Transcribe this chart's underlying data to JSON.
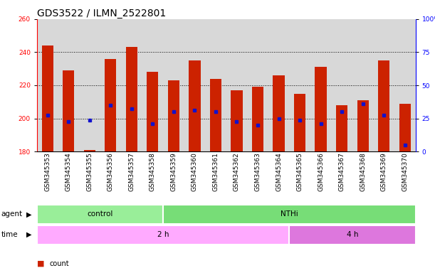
{
  "title": "GDS3522 / ILMN_2522801",
  "samples": [
    "GSM345353",
    "GSM345354",
    "GSM345355",
    "GSM345356",
    "GSM345357",
    "GSM345358",
    "GSM345359",
    "GSM345360",
    "GSM345361",
    "GSM345362",
    "GSM345363",
    "GSM345364",
    "GSM345365",
    "GSM345366",
    "GSM345367",
    "GSM345368",
    "GSM345369",
    "GSM345370"
  ],
  "bar_bottom": 180,
  "bar_tops": [
    244,
    229,
    181,
    236,
    243,
    228,
    223,
    235,
    224,
    217,
    219,
    226,
    215,
    231,
    208,
    211,
    235,
    209
  ],
  "blue_positions": [
    202,
    198,
    199,
    208,
    206,
    197,
    204,
    205,
    204,
    198,
    196,
    200,
    199,
    197,
    204,
    209,
    202,
    184
  ],
  "ylim_left": [
    180,
    260
  ],
  "ylim_right": [
    0,
    100
  ],
  "yticks_left": [
    180,
    200,
    220,
    240,
    260
  ],
  "yticks_right": [
    0,
    25,
    50,
    75,
    100
  ],
  "bar_color": "#cc2200",
  "blue_color": "#1111cc",
  "bg_color": "#d8d8d8",
  "plot_bg": "#ffffff",
  "control_color": "#99ee99",
  "nthi_color": "#77dd77",
  "time_2h_color": "#ffaaff",
  "time_4h_color": "#dd77dd",
  "bar_width": 0.55,
  "title_fontsize": 10,
  "tick_fontsize": 6.5,
  "control_n": 6,
  "nthi_n": 12,
  "time_2h_n": 12,
  "time_4h_n": 6
}
